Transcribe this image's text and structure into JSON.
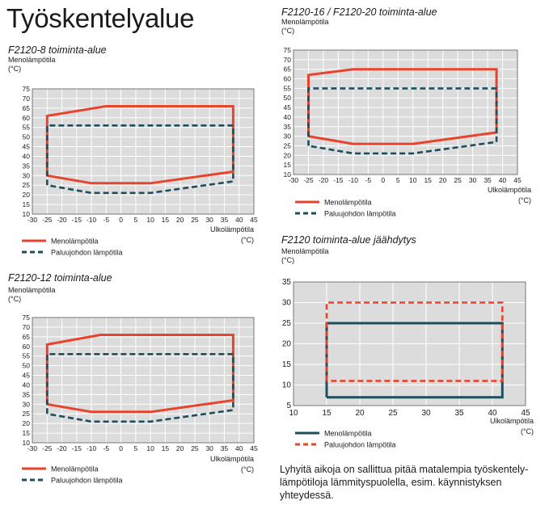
{
  "page": {
    "title": "Työskentelyalue"
  },
  "note": "Lyhyitä aikoja on sallittua pitää matalempia työskentely-lämpötiloja lämmityspuolella, esim. käynnistyksen yhteydessä.",
  "colors": {
    "supply": "#e8432c",
    "return": "#1e4d5c",
    "plot_bg": "#dcdcdc",
    "grid": "#ffffff"
  },
  "chart_data": [
    {
      "id": "c1",
      "type": "line",
      "title": "F2120-8 toiminta-alue",
      "ylabel": [
        "Menolämpötila",
        "(°C)"
      ],
      "xlabel": [
        "Ulkolämpötila",
        "(°C)"
      ],
      "xlim": [
        -30,
        45
      ],
      "xstep": 5,
      "ylim": [
        10,
        75
      ],
      "ystep": 5,
      "grid": true,
      "legend_position": "bottom-left",
      "series": [
        {
          "name": "Menolämpötila",
          "style": "solid",
          "color": "#e8432c",
          "x": [
            -25,
            -25,
            -5,
            38,
            38,
            10,
            -10,
            -25
          ],
          "y": [
            30,
            61,
            66,
            66,
            32,
            26,
            26,
            30
          ]
        },
        {
          "name": "Paluujohdon lämpötila",
          "style": "dashed",
          "color": "#1e4d5c",
          "x": [
            -25,
            -25,
            38,
            38,
            10,
            -10,
            -25
          ],
          "y": [
            25,
            56,
            56,
            27,
            21,
            21,
            25
          ]
        }
      ]
    },
    {
      "id": "c2",
      "type": "line",
      "title": "F2120-16 / F2120-20 toiminta-alue",
      "ylabel": [
        "Menolämpötila",
        "(°C)"
      ],
      "xlabel": [
        "Ulkolämpötila",
        "(°C)"
      ],
      "xlim": [
        -30,
        45
      ],
      "xstep": 5,
      "ylim": [
        10,
        75
      ],
      "ystep": 5,
      "grid": true,
      "legend_position": "bottom-left",
      "series": [
        {
          "name": "Menolämpötila",
          "style": "solid",
          "color": "#e8432c",
          "x": [
            -25,
            -25,
            -10,
            38,
            38,
            10,
            -10,
            -25
          ],
          "y": [
            30,
            62,
            65,
            65,
            32,
            26,
            26,
            30
          ]
        },
        {
          "name": "Paluujohdon lämpötila",
          "style": "dashed",
          "color": "#1e4d5c",
          "x": [
            -25,
            -25,
            38,
            38,
            10,
            -10,
            -25
          ],
          "y": [
            25,
            55,
            55,
            27,
            21,
            21,
            25
          ]
        }
      ]
    },
    {
      "id": "c3",
      "type": "line",
      "title": "F2120-12 toiminta-alue",
      "ylabel": [
        "Menolämpötila",
        "(°C)"
      ],
      "xlabel": [
        "Ulkolämpötila",
        "(°C)"
      ],
      "xlim": [
        -30,
        45
      ],
      "xstep": 5,
      "ylim": [
        10,
        75
      ],
      "ystep": 5,
      "grid": true,
      "legend_position": "bottom-left",
      "series": [
        {
          "name": "Menolämpötila",
          "style": "solid",
          "color": "#e8432c",
          "x": [
            -25,
            -25,
            -7,
            38,
            38,
            10,
            -10,
            -25
          ],
          "y": [
            30,
            61,
            66,
            66,
            32,
            26,
            26,
            30
          ]
        },
        {
          "name": "Paluujohdon lämpötila",
          "style": "dashed",
          "color": "#1e4d5c",
          "x": [
            -25,
            -25,
            38,
            38,
            10,
            -10,
            -25
          ],
          "y": [
            25,
            56,
            56,
            27,
            21,
            21,
            25
          ]
        }
      ]
    },
    {
      "id": "c4",
      "type": "line",
      "title": "F2120 toiminta-alue jäähdytys",
      "ylabel": [
        "Menolämpötila",
        "(°C)"
      ],
      "xlabel": [
        "Ulkolämpötila",
        "(°C)"
      ],
      "xlim": [
        10,
        45
      ],
      "xstep": 5,
      "ylim": [
        5,
        35
      ],
      "ystep": 5,
      "grid": true,
      "legend_position": "bottom-left",
      "series": [
        {
          "name": "Menolämpötila",
          "style": "solid",
          "color": "#1e4d5c",
          "x": [
            15,
            15,
            41.5,
            41.5,
            15
          ],
          "y": [
            7,
            25,
            25,
            7,
            7
          ]
        },
        {
          "name": "Paluujohdon lämpötila",
          "style": "dashed",
          "color": "#e8432c",
          "x": [
            15,
            15,
            41.5,
            41.5,
            15
          ],
          "y": [
            11,
            30,
            30,
            11,
            11
          ]
        }
      ]
    }
  ]
}
